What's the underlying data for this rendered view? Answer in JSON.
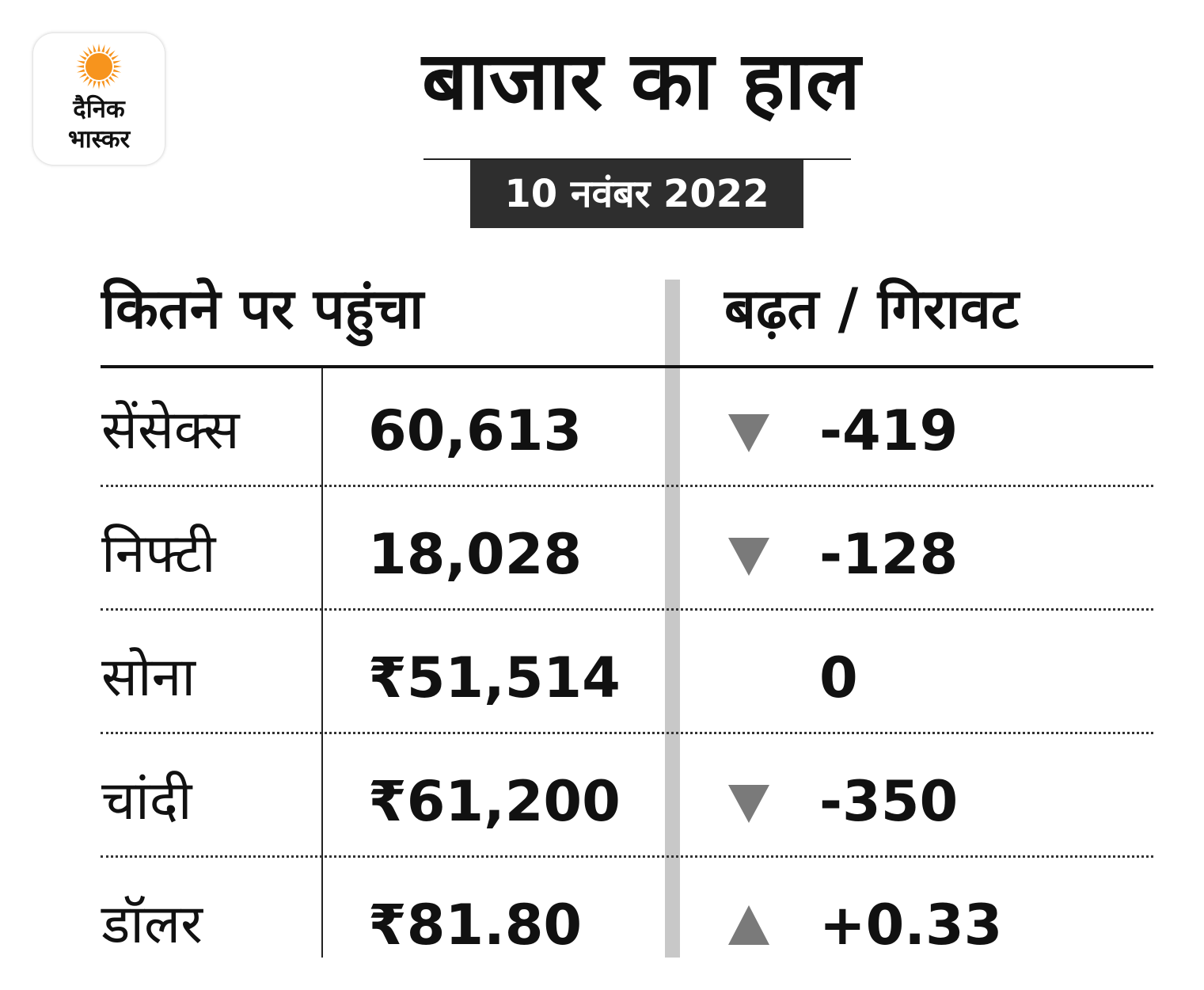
{
  "logo": {
    "line1": "दैनिक",
    "line2": "भास्कर",
    "sun_color": "#f7941d"
  },
  "title": "बाजार का हाल",
  "date": "10 नवंबर 2022",
  "headers": {
    "left": "कितने पर पहुंचा",
    "right": "बढ़त / गिरावट"
  },
  "rows": [
    {
      "name": "सेंसेक्स",
      "value": "60,613",
      "change": "-419",
      "direction": "down"
    },
    {
      "name": "निफ्टी",
      "value": "18,028",
      "change": "-128",
      "direction": "down"
    },
    {
      "name": "सोना",
      "value": "₹51,514",
      "change": "0",
      "direction": "none"
    },
    {
      "name": "चांदी",
      "value": "₹61,200",
      "change": "-350",
      "direction": "down"
    },
    {
      "name": "डॉलर",
      "value": "₹81.80",
      "change": "+0.33",
      "direction": "up"
    }
  ],
  "colors": {
    "arrow": "#7a7a7a",
    "date_bg": "#2e2e2e",
    "divider": "#c8c8c8"
  }
}
